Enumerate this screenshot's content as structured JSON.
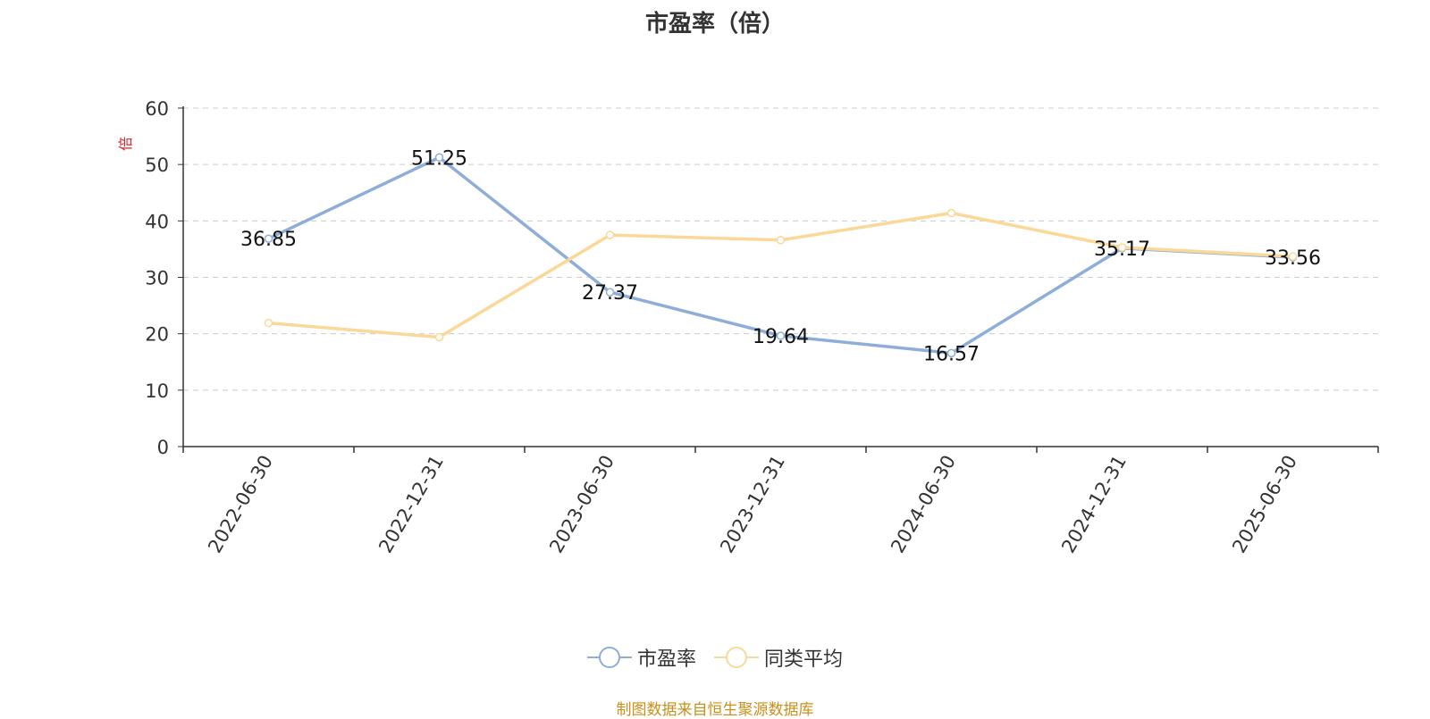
{
  "chart_data": {
    "type": "line",
    "title": "市盈率（倍）",
    "ylabel": "倍",
    "ylim": [
      0,
      60
    ],
    "yticks": [
      0,
      10,
      20,
      30,
      40,
      50,
      60
    ],
    "grid": true,
    "legend_position": "bottom-center",
    "categories": [
      "2022-06-30",
      "2022-12-31",
      "2023-06-30",
      "2023-12-31",
      "2024-06-30",
      "2024-12-31",
      "2025-06-30"
    ],
    "series": [
      {
        "name": "市盈率",
        "color": "#8eaed9",
        "values": [
          36.85,
          51.25,
          27.37,
          19.64,
          16.57,
          35.17,
          33.56
        ],
        "data_labels": [
          "36.85",
          "51.25",
          "27.37",
          "19.64",
          "16.57",
          "35.17",
          "33.56"
        ]
      },
      {
        "name": "同类平均",
        "color": "#fad898",
        "values": [
          21.9,
          19.4,
          37.5,
          36.6,
          41.4,
          35.3,
          33.7
        ]
      }
    ]
  },
  "source_note": "制图数据来自恒生聚源数据库"
}
